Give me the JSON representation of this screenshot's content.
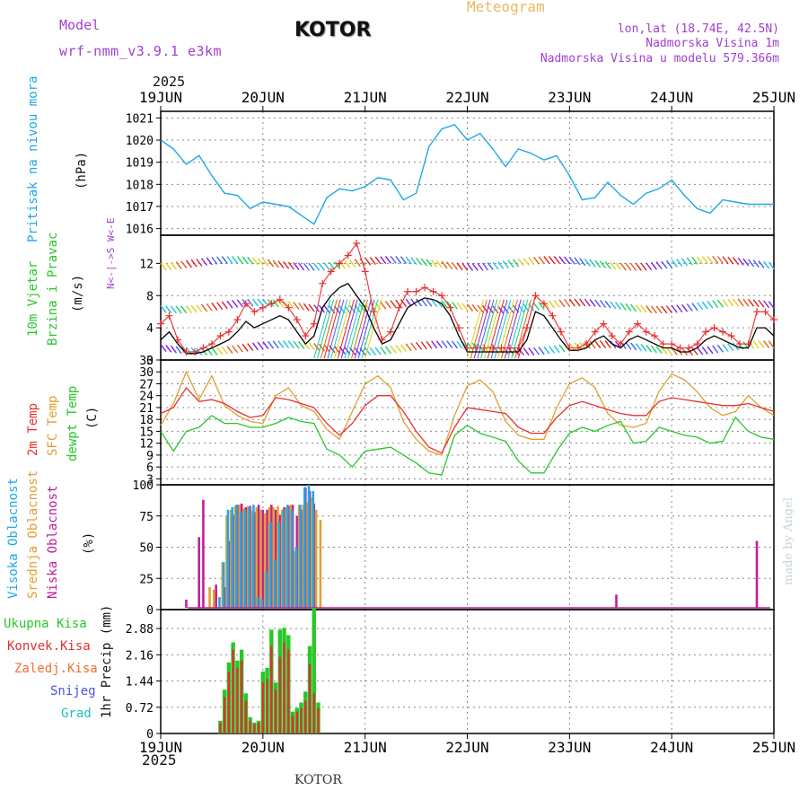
{
  "header": {
    "model_label": "Model",
    "model_name": "wrf-nmm_v3.9.1 e3km",
    "city": "KOTOR",
    "title": "Meteogram",
    "lonlat": "lon,lat (18.74E, 42.5N)",
    "elevation": "Nadmorska Visina 1m",
    "model_elevation": "Nadmorska Visina u modelu 579.366m",
    "year_top": "2025",
    "year_bottom": "2025",
    "footer": "KOTOR",
    "credit": "made by Angel"
  },
  "colors": {
    "pressure": "#1ea8e8",
    "wind_speed": "#000000",
    "gust": "#e83030",
    "temp2m": "#e83030",
    "sfc_temp": "#e0a030",
    "dewpoint": "#28c828",
    "high_cloud": "#1ea8e8",
    "mid_cloud": "#e0a030",
    "low_cloud": "#c0209a",
    "total_rain": "#28c828",
    "conv_rain": "#e03030",
    "frz_rain": "#f07030",
    "snow": "#5050e0",
    "graupel": "#20c0c0",
    "label_purple": "#a040d0"
  },
  "x_axis": {
    "day_labels": [
      "19JUN",
      "20JUN",
      "21JUN",
      "22JUN",
      "23JUN",
      "24JUN",
      "25JUN"
    ],
    "hours_total": 144
  },
  "chart_data": [
    {
      "type": "line",
      "id": "pressure",
      "ylabel_main": "Pritisak na nivou mora",
      "unit": "(hPa)",
      "ylim": [
        1015.7,
        1021.3
      ],
      "yticks": [
        "1016",
        "1017",
        "1018",
        "1019",
        "1020",
        "1021"
      ],
      "series": [
        {
          "name": "MSLP",
          "x": [
            0,
            3,
            6,
            9,
            12,
            15,
            18,
            21,
            24,
            27,
            30,
            33,
            36,
            39,
            42,
            45,
            48,
            51,
            54,
            57,
            60,
            63,
            66,
            69,
            72,
            75,
            78,
            81,
            84,
            87,
            90,
            93,
            96,
            99,
            102,
            105,
            108,
            111,
            114,
            117,
            120,
            123,
            126,
            129,
            132,
            135,
            138,
            141,
            144
          ],
          "values": [
            1020.0,
            1019.6,
            1018.9,
            1019.3,
            1018.4,
            1017.6,
            1017.5,
            1016.9,
            1017.2,
            1017.1,
            1017.0,
            1016.6,
            1016.2,
            1017.4,
            1017.8,
            1017.7,
            1017.9,
            1018.3,
            1018.2,
            1017.3,
            1017.6,
            1019.7,
            1020.5,
            1020.7,
            1020.0,
            1020.3,
            1019.6,
            1018.8,
            1019.6,
            1019.4,
            1019.1,
            1019.3,
            1018.4,
            1017.3,
            1017.4,
            1018.1,
            1017.5,
            1017.1,
            1017.6,
            1017.8,
            1018.2,
            1017.5,
            1016.9,
            1016.7,
            1017.3,
            1017.2,
            1017.1,
            1017.1,
            1017.1
          ]
        }
      ]
    },
    {
      "type": "line",
      "id": "wind",
      "ylabel_main": "10m Vjetar",
      "ylabel_sub": "Brzina i Pravac",
      "unit": "(m/s)",
      "direction_legend": "N<-|->S  W<-E",
      "ylim": [
        0,
        15.5
      ],
      "yticks": [
        "0",
        "4",
        "8",
        "12"
      ],
      "series": [
        {
          "name": "Wind speed",
          "x": [
            0,
            2,
            4,
            6,
            8,
            10,
            12,
            14,
            16,
            18,
            20,
            22,
            24,
            26,
            28,
            30,
            32,
            34,
            36,
            38,
            40,
            42,
            44,
            46,
            48,
            50,
            52,
            54,
            56,
            58,
            60,
            62,
            64,
            66,
            68,
            70,
            72,
            74,
            76,
            78,
            80,
            82,
            84,
            86,
            88,
            90,
            92,
            94,
            96,
            98,
            100,
            102,
            104,
            106,
            108,
            110,
            112,
            114,
            116,
            118,
            120,
            122,
            124,
            126,
            128,
            130,
            132,
            134,
            136,
            138,
            140,
            142,
            144
          ],
          "values": [
            2.5,
            3.5,
            2.0,
            0.8,
            0.8,
            1.0,
            1.5,
            2.0,
            2.5,
            3.5,
            4.8,
            4.0,
            4.5,
            5.0,
            5.5,
            5.0,
            3.5,
            2.0,
            3.0,
            6.5,
            8.0,
            9.0,
            9.5,
            8.0,
            6.5,
            4.0,
            2.0,
            2.5,
            4.5,
            6.5,
            7.2,
            7.7,
            7.5,
            7.0,
            5.5,
            3.0,
            1.0,
            1.0,
            1.0,
            1.0,
            1.0,
            1.0,
            1.0,
            2.5,
            6.0,
            5.5,
            4.0,
            2.5,
            1.2,
            1.2,
            1.5,
            2.5,
            3.0,
            2.0,
            1.5,
            2.5,
            3.0,
            2.5,
            2.0,
            1.5,
            1.5,
            1.0,
            1.0,
            1.5,
            2.5,
            3.0,
            2.5,
            2.0,
            1.5,
            1.5,
            4.0,
            4.0,
            3.0
          ]
        },
        {
          "name": "Gust",
          "x": [
            0,
            2,
            4,
            6,
            8,
            10,
            12,
            14,
            16,
            18,
            20,
            22,
            24,
            26,
            28,
            30,
            32,
            34,
            36,
            38,
            40,
            42,
            44,
            46,
            48,
            50,
            52,
            54,
            56,
            58,
            60,
            62,
            64,
            66,
            68,
            70,
            72,
            74,
            76,
            78,
            80,
            82,
            84,
            86,
            88,
            90,
            92,
            94,
            96,
            98,
            100,
            102,
            104,
            106,
            108,
            110,
            112,
            114,
            116,
            118,
            120,
            122,
            124,
            126,
            128,
            130,
            132,
            134,
            136,
            138,
            140,
            142,
            144
          ],
          "values": [
            4.5,
            5.5,
            2.5,
            1.0,
            1.0,
            1.5,
            2.0,
            3.0,
            3.5,
            5.0,
            7.0,
            6.0,
            6.5,
            7.0,
            7.5,
            6.5,
            5.0,
            3.0,
            4.5,
            9.5,
            11.0,
            12.0,
            13.0,
            14.5,
            11.0,
            6.0,
            2.5,
            3.5,
            6.5,
            8.5,
            8.5,
            9.0,
            8.5,
            8.0,
            6.5,
            4.0,
            1.5,
            1.5,
            1.5,
            1.5,
            1.5,
            1.5,
            1.5,
            4.0,
            8.0,
            7.0,
            5.5,
            3.5,
            1.5,
            1.5,
            2.0,
            3.5,
            4.5,
            3.0,
            2.0,
            3.5,
            4.5,
            3.5,
            3.0,
            2.0,
            2.0,
            1.5,
            1.5,
            2.0,
            3.5,
            4.0,
            3.5,
            3.0,
            2.0,
            2.0,
            6.0,
            6.0,
            5.0
          ]
        }
      ]
    },
    {
      "type": "line",
      "id": "temperature",
      "ylabel_1": "2m Temp",
      "ylabel_2": "SFC Temp",
      "ylabel_3": "dewpt Temp",
      "unit": "(C)",
      "ylim": [
        1.5,
        33
      ],
      "yticks": [
        "3",
        "6",
        "9",
        "12",
        "15",
        "18",
        "21",
        "24",
        "27",
        "30",
        "33"
      ],
      "series": [
        {
          "name": "2m Temp",
          "x": [
            0,
            3,
            6,
            9,
            12,
            15,
            18,
            21,
            24,
            27,
            30,
            33,
            36,
            39,
            42,
            45,
            48,
            51,
            54,
            57,
            60,
            63,
            66,
            69,
            72,
            75,
            78,
            81,
            84,
            87,
            90,
            93,
            96,
            99,
            102,
            105,
            108,
            111,
            114,
            117,
            120,
            123,
            126,
            129,
            132,
            135,
            138,
            141,
            144
          ],
          "values": [
            19.5,
            21.0,
            26.0,
            22.5,
            23.0,
            22.0,
            20.0,
            18.5,
            19.0,
            23.5,
            23.0,
            22.0,
            21.0,
            17.0,
            14.0,
            17.0,
            21.5,
            24.0,
            24.0,
            20.0,
            15.0,
            11.0,
            9.5,
            16.0,
            21.0,
            20.5,
            20.0,
            19.5,
            16.0,
            14.5,
            14.5,
            18.5,
            21.5,
            22.5,
            21.5,
            20.5,
            19.5,
            19.0,
            19.0,
            22.5,
            23.5,
            23.0,
            22.5,
            22.0,
            21.5,
            21.5,
            22.0,
            21.0,
            20.0
          ]
        },
        {
          "name": "SFC Temp",
          "x": [
            0,
            3,
            6,
            9,
            12,
            15,
            18,
            21,
            24,
            27,
            30,
            33,
            36,
            39,
            42,
            45,
            48,
            51,
            54,
            57,
            60,
            63,
            66,
            69,
            72,
            75,
            78,
            81,
            84,
            87,
            90,
            93,
            96,
            99,
            102,
            105,
            108,
            111,
            114,
            117,
            120,
            123,
            126,
            129,
            132,
            135,
            138,
            141,
            144
          ],
          "values": [
            16.5,
            22.0,
            30.0,
            23.0,
            29.0,
            21.5,
            19.0,
            17.5,
            17.0,
            24.0,
            26.0,
            21.5,
            20.0,
            15.5,
            13.0,
            20.0,
            27.0,
            29.0,
            26.0,
            17.5,
            13.0,
            10.0,
            9.0,
            19.0,
            26.5,
            28.0,
            25.0,
            17.5,
            14.0,
            13.0,
            13.0,
            21.0,
            27.0,
            28.5,
            26.0,
            19.5,
            16.5,
            16.0,
            17.0,
            25.0,
            29.5,
            28.0,
            25.0,
            21.0,
            19.0,
            20.0,
            24.0,
            21.0,
            19.0
          ]
        },
        {
          "name": "Dewpoint",
          "x": [
            0,
            3,
            6,
            9,
            12,
            15,
            18,
            21,
            24,
            27,
            30,
            33,
            36,
            39,
            42,
            45,
            48,
            51,
            54,
            57,
            60,
            63,
            66,
            69,
            72,
            75,
            78,
            81,
            84,
            87,
            90,
            93,
            96,
            99,
            102,
            105,
            108,
            111,
            114,
            117,
            120,
            123,
            126,
            129,
            132,
            135,
            138,
            141,
            144
          ],
          "values": [
            15.0,
            10.0,
            15.0,
            16.0,
            19.0,
            17.0,
            17.0,
            16.0,
            16.0,
            17.0,
            18.5,
            17.5,
            17.0,
            10.5,
            9.0,
            6.0,
            10.0,
            10.5,
            11.0,
            9.0,
            7.0,
            4.5,
            4.0,
            14.0,
            16.5,
            14.5,
            13.5,
            12.5,
            7.5,
            4.5,
            4.5,
            10.0,
            14.5,
            16.0,
            15.0,
            16.5,
            17.5,
            12.0,
            12.5,
            16.0,
            15.0,
            14.0,
            13.5,
            12.0,
            12.5,
            18.5,
            15.0,
            13.5,
            13.0
          ]
        }
      ]
    },
    {
      "type": "bar",
      "id": "clouds",
      "ylabel_1": "Visoka Oblacnost",
      "ylabel_2": "Srednja Oblacnost",
      "ylabel_3": "Niska Oblacnost",
      "unit": "(%)",
      "ylim": [
        0,
        100
      ],
      "yticks": [
        "0",
        "25",
        "50",
        "75",
        "100"
      ],
      "series": [
        {
          "name": "Niska Oblacnost",
          "x": [
            6,
            9,
            10,
            13,
            15,
            16,
            17,
            18,
            19,
            20,
            21,
            22,
            23,
            24,
            25,
            26,
            27,
            28,
            29,
            30,
            31,
            32,
            33,
            34,
            35,
            36,
            107,
            140
          ],
          "values": [
            8,
            58,
            88,
            20,
            18,
            55,
            76,
            84,
            85,
            82,
            83,
            78,
            84,
            80,
            80,
            84,
            80,
            76,
            82,
            83,
            84,
            75,
            80,
            98,
            95,
            85,
            12,
            55
          ]
        },
        {
          "name": "Srednja Oblacnost",
          "x": [
            11.5,
            12.5,
            14.5,
            15.5,
            16.5,
            17.5,
            18.5,
            19.5,
            20.5,
            21.5,
            22.5,
            23.5,
            24.5,
            25.5,
            26.5,
            27.5,
            28.5,
            29.5,
            30.5,
            31.5,
            32.5,
            33.5,
            34.5,
            35.5,
            36.5,
            37.5
          ],
          "values": [
            18,
            16,
            38,
            75,
            80,
            83,
            84,
            81,
            83,
            79,
            82,
            80,
            77,
            82,
            82,
            83,
            80,
            82,
            84,
            47,
            84,
            84,
            86,
            90,
            80,
            72
          ]
        },
        {
          "name": "Visoka Oblacnost",
          "x": [
            13.8,
            14.8,
            15.8,
            16.8,
            17.8,
            18.8,
            19.8,
            20.8,
            21.8,
            22.8,
            23.8,
            24.8,
            25.8,
            26.8,
            27.8,
            28.8,
            29.8,
            30.8,
            31.8,
            32.8,
            33.8,
            34.8,
            35.8
          ],
          "values": [
            10,
            38,
            80,
            82,
            84,
            78,
            80,
            82,
            84,
            10,
            8,
            30,
            70,
            40,
            70,
            80,
            84,
            80,
            50,
            84,
            98,
            100,
            95
          ]
        }
      ]
    },
    {
      "type": "bar",
      "id": "precip",
      "legend": [
        "Ukupna Kisa",
        "Konvek.Kisa",
        "Zaledj.Kisa",
        "Snijeg",
        "Grad"
      ],
      "ylabel": "1hr Precip (mm)",
      "ylim": [
        0,
        3.4
      ],
      "yticks": [
        "0",
        "0.72",
        "1.44",
        "2.16",
        "2.88"
      ],
      "series": [
        {
          "name": "Ukupna Kisa",
          "x": [
            14,
            15,
            16,
            17,
            18,
            19,
            20,
            21,
            22,
            23,
            24,
            25,
            26,
            27,
            28,
            29,
            30,
            31,
            32,
            33,
            34,
            35,
            36,
            37
          ],
          "values": [
            0.35,
            1.2,
            1.95,
            2.5,
            2.0,
            2.3,
            1.1,
            0.45,
            0.3,
            0.35,
            1.7,
            1.8,
            2.85,
            1.4,
            2.85,
            2.9,
            2.7,
            0.6,
            0.7,
            0.85,
            1.15,
            2.4,
            3.45,
            0.85
          ]
        },
        {
          "name": "Konvek.Kisa",
          "x": [
            14,
            15,
            16,
            17,
            18,
            19,
            20,
            21,
            22,
            23,
            24,
            25,
            26,
            27,
            28,
            29,
            30,
            31,
            32,
            33,
            34,
            35,
            36,
            37
          ],
          "values": [
            0.3,
            1.0,
            1.7,
            2.3,
            1.8,
            2.0,
            0.9,
            0.35,
            0.25,
            0.3,
            1.4,
            1.5,
            2.4,
            1.2,
            2.1,
            2.5,
            2.3,
            0.5,
            0.6,
            0.7,
            0.9,
            1.9,
            1.1,
            0.7
          ]
        }
      ]
    }
  ]
}
